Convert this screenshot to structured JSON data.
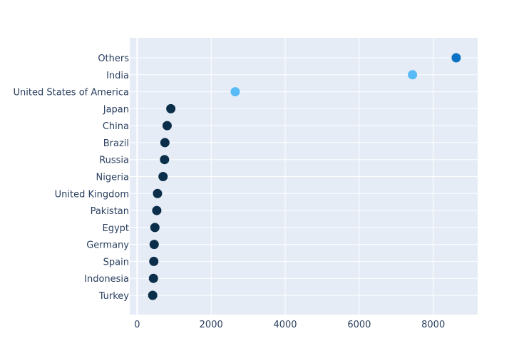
{
  "chart_data": {
    "type": "scatter",
    "title": "",
    "xlabel": "",
    "ylabel": "",
    "xlim": [
      -200,
      9200
    ],
    "x_ticks": [
      0,
      2000,
      4000,
      6000,
      8000
    ],
    "grid": true,
    "legend": "none",
    "categories": [
      "Turkey",
      "Indonesia",
      "Spain",
      "Germany",
      "Egypt",
      "Pakistan",
      "United Kingdom",
      "Nigeria",
      "Russia",
      "Brazil",
      "China",
      "Japan",
      "United States of America",
      "India",
      "Others"
    ],
    "values": [
      420,
      440,
      450,
      460,
      480,
      530,
      550,
      700,
      740,
      750,
      810,
      910,
      2650,
      7440,
      8620
    ],
    "colors": [
      "#0b2e4a",
      "#0b2e4a",
      "#0b2e4a",
      "#0b2e4a",
      "#0b2e4a",
      "#0b2e4a",
      "#0b2e4a",
      "#0b2e4a",
      "#0b2e4a",
      "#0b2e4a",
      "#0b2e4a",
      "#0b2e4a",
      "#58baf7",
      "#58baf7",
      "#0a72c4"
    ]
  },
  "style": {
    "plot_bg": "#e5ecf6",
    "grid_color": "#ffffff",
    "text_color": "#2a3f5f"
  }
}
